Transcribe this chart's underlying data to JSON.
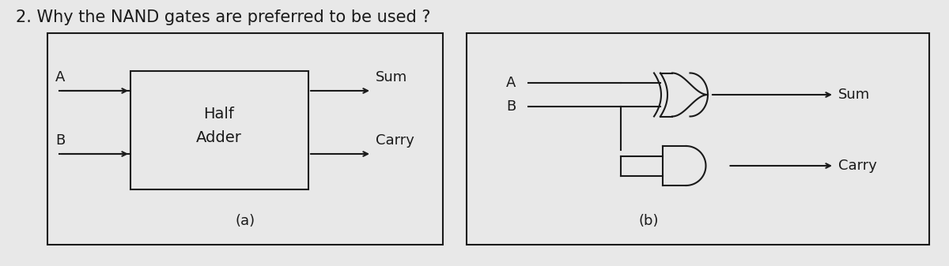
{
  "title": "2. Why the NAND gates are preferred to be used ?",
  "title_fontsize": 15,
  "bg_color": "#e8e8e8",
  "line_color": "#1a1a1a",
  "text_color": "#1a1a1a",
  "fig_width": 12.0,
  "fig_height": 3.37,
  "label_a_left": "A",
  "label_b_left": "B",
  "label_sum_left": "Sum",
  "label_carry_left": "Carry",
  "label_half": "Half",
  "label_adder": "Adder",
  "label_a_fig_a": "(a)",
  "label_b_fig_b": "(b)",
  "label_a_right": "A",
  "label_b_right": "B",
  "label_sum_right": "Sum",
  "label_carry_right": "Carry"
}
